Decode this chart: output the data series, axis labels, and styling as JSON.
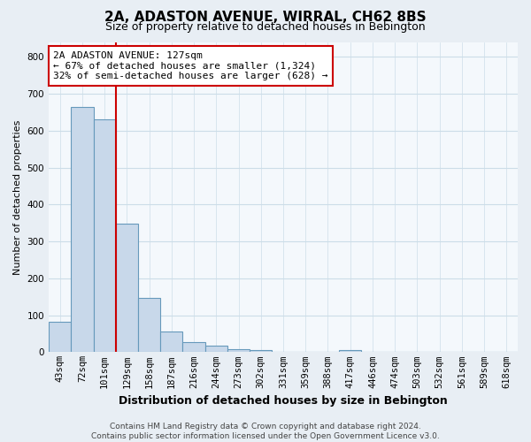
{
  "title": "2A, ADASTON AVENUE, WIRRAL, CH62 8BS",
  "subtitle": "Size of property relative to detached houses in Bebington",
  "xlabel": "Distribution of detached houses by size in Bebington",
  "ylabel": "Number of detached properties",
  "bar_labels": [
    "43sqm",
    "72sqm",
    "101sqm",
    "129sqm",
    "158sqm",
    "187sqm",
    "216sqm",
    "244sqm",
    "273sqm",
    "302sqm",
    "331sqm",
    "359sqm",
    "388sqm",
    "417sqm",
    "446sqm",
    "474sqm",
    "503sqm",
    "532sqm",
    "561sqm",
    "589sqm",
    "618sqm"
  ],
  "bar_values": [
    83,
    665,
    630,
    348,
    148,
    57,
    27,
    18,
    8,
    5,
    0,
    0,
    0,
    6,
    0,
    0,
    0,
    0,
    0,
    0,
    0
  ],
  "bar_color": "#c8d8ea",
  "bar_edge_color": "#6699bb",
  "vline_color": "#cc0000",
  "annotation_text": "2A ADASTON AVENUE: 127sqm\n← 67% of detached houses are smaller (1,324)\n32% of semi-detached houses are larger (628) →",
  "annotation_box_color": "#ffffff",
  "annotation_box_edge": "#cc0000",
  "ylim": [
    0,
    840
  ],
  "yticks": [
    0,
    100,
    200,
    300,
    400,
    500,
    600,
    700,
    800
  ],
  "footer_text": "Contains HM Land Registry data © Crown copyright and database right 2024.\nContains public sector information licensed under the Open Government Licence v3.0.",
  "background_color": "#e8eef4",
  "plot_bg_color": "#f4f8fc",
  "grid_color": "#ccdde8",
  "title_fontsize": 11,
  "subtitle_fontsize": 9,
  "ylabel_fontsize": 8,
  "xlabel_fontsize": 9,
  "tick_fontsize": 7.5,
  "annotation_fontsize": 8,
  "footer_fontsize": 6.5
}
